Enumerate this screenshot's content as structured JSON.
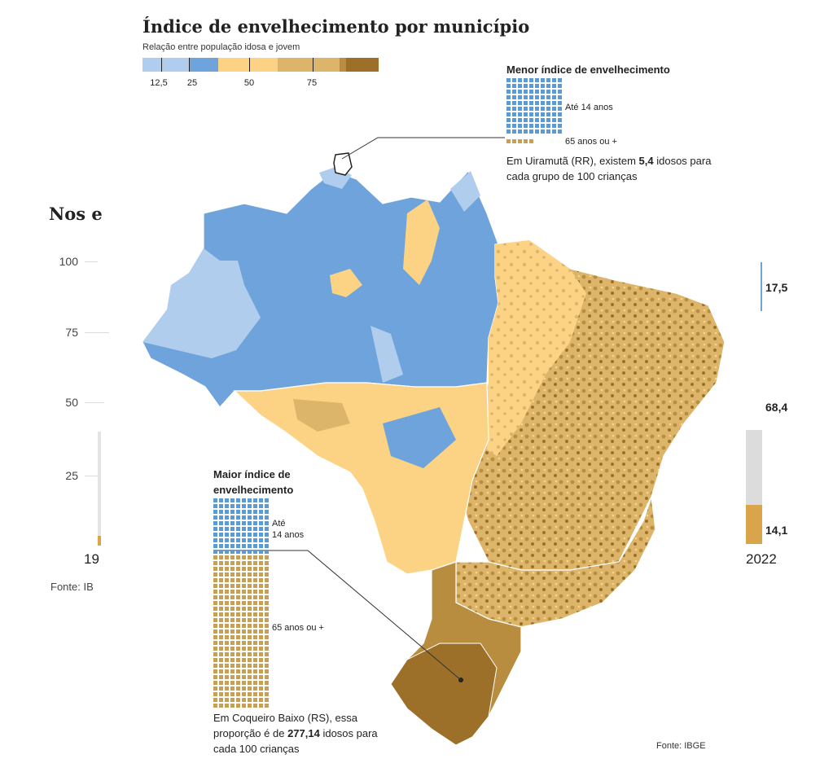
{
  "title": "Índice de envelhecimento por município",
  "subtitle": "Relação entre população idosa e jovem",
  "legend": {
    "ticks": [
      "12,5",
      "25",
      "50",
      "75"
    ],
    "colors": [
      "#b0cdee",
      "#6fa3db",
      "#fcd384",
      "#ddb56a",
      "#b88d3f",
      "#9c7029"
    ]
  },
  "background_chart": {
    "heading": "Nos e",
    "y_ticks": [
      "100",
      "75",
      "50",
      "25"
    ],
    "year_start": "19",
    "year_end": "2022",
    "source": "Fonte: IB",
    "values": [
      "17,5",
      "68,4",
      "14,1"
    ]
  },
  "lowest": {
    "title": "Menor índice de envelhecimento",
    "young_label": "Até 14 anos",
    "old_label": "65 anos ou +",
    "note_pre": "Em Uiramutã (RR), existem ",
    "note_value": "5,4",
    "note_post": " idosos para cada grupo de 100 crianças"
  },
  "highest": {
    "title_line1": "Maior índice de",
    "title_line2": "envelhecimento",
    "young_label_1": "Até",
    "young_label_2": "14 anos",
    "old_label": "65 anos ou +",
    "note_pre": "Em Coqueiro Baixo (RS), essa proporção é de ",
    "note_value": "277,14",
    "note_post": " idosos para cada 100 crianças"
  },
  "source": "Fonte: IBGE",
  "colors": {
    "blue_light": "#b0cdee",
    "blue": "#6fa3db",
    "yellow": "#fcd384",
    "gold": "#ddb56a",
    "brown": "#b88d3f",
    "brown_dark": "#9c7029"
  }
}
